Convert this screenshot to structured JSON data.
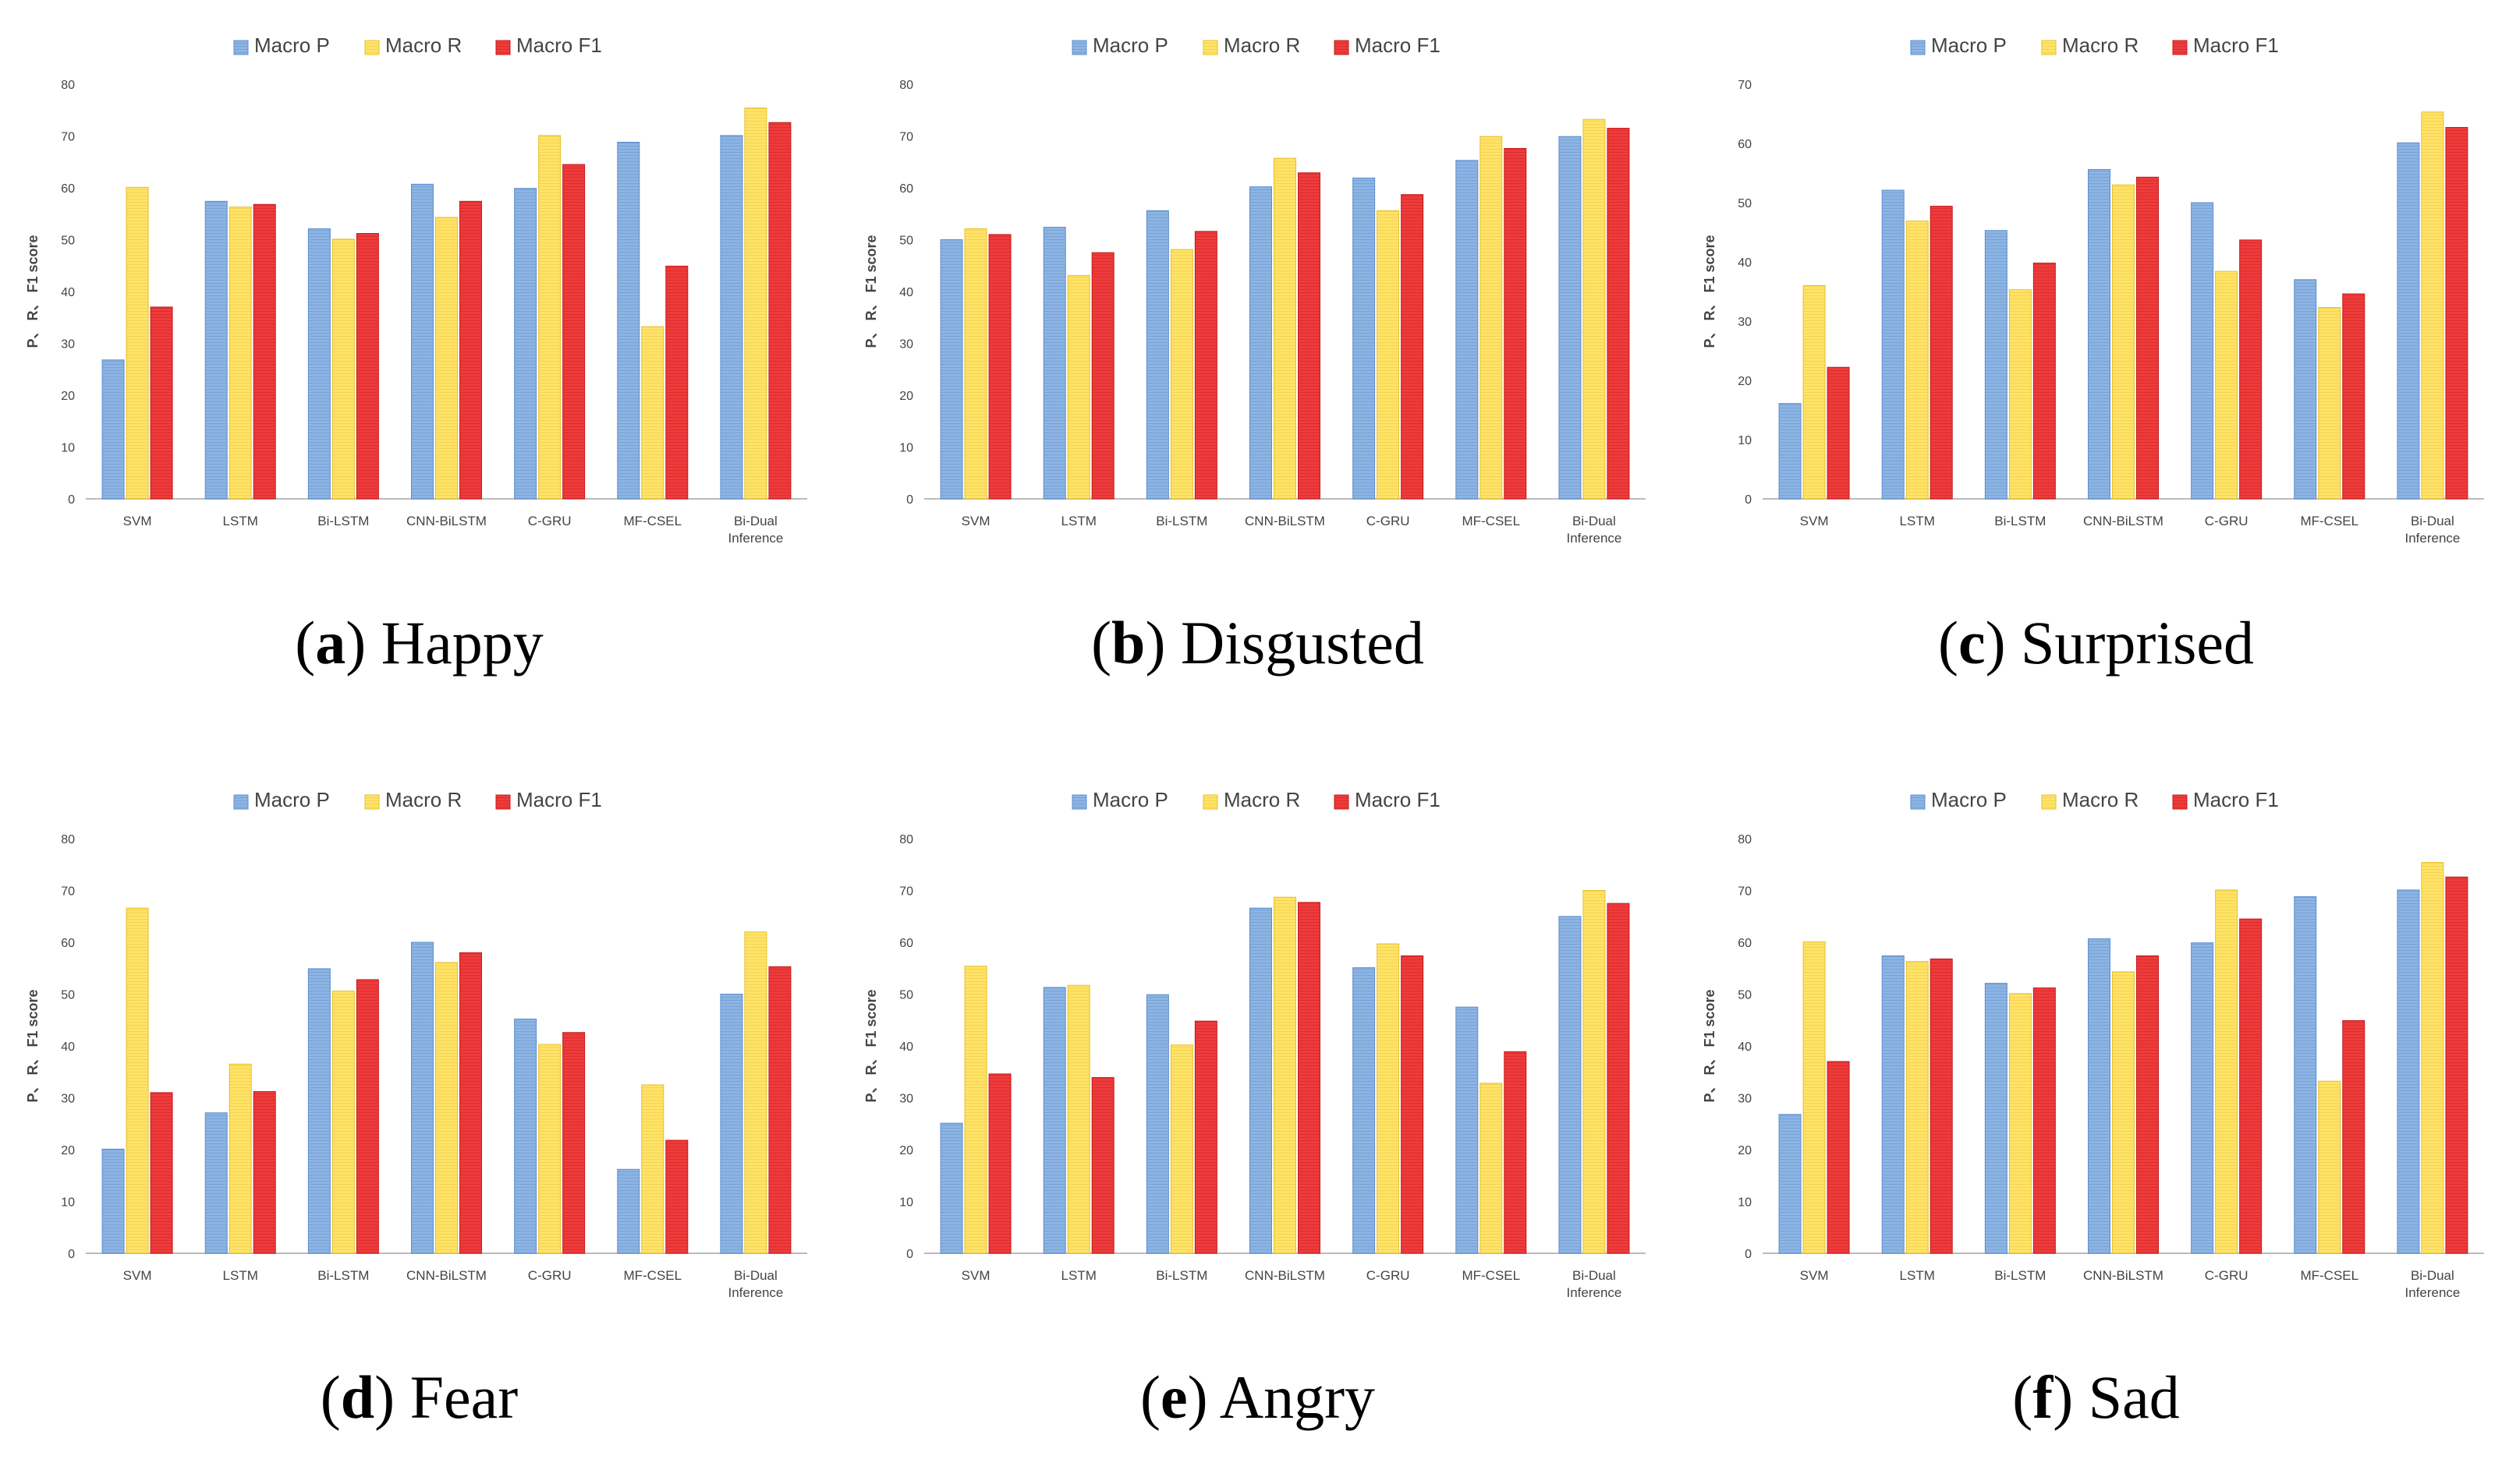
{
  "legend": {
    "labels": [
      "Macro P",
      "Macro R",
      "Macro F1"
    ]
  },
  "colors": {
    "p": "#8db4e2",
    "p_stroke": "#5b8ed0",
    "r": "#ffe36a",
    "r_stroke": "#e8bf2a",
    "f1": "#ee3b3b",
    "f1_stroke": "#c41c1c"
  },
  "chart_data": [
    {
      "type": "bar",
      "panel": "a",
      "caption_letter": "a",
      "caption_text": "Happy",
      "ylabel": "P、 R、 F1 score",
      "categories": [
        "SVM",
        "LSTM",
        "Bi-LSTM",
        "CNN-BiLSTM",
        "C-GRU",
        "MF-CSEL",
        "Bi-Dual Inference"
      ],
      "ylim": [
        0,
        80
      ],
      "yticks": [
        0,
        10,
        20,
        30,
        40,
        50,
        60,
        70,
        80
      ],
      "series": [
        {
          "name": "Macro P",
          "values": [
            26.8,
            57.4,
            52.1,
            60.7,
            59.9,
            68.8,
            70.1
          ]
        },
        {
          "name": "Macro R",
          "values": [
            60.1,
            56.3,
            50.1,
            54.3,
            70.1,
            33.2,
            75.4
          ]
        },
        {
          "name": "Macro F1",
          "values": [
            37.0,
            56.8,
            51.2,
            57.4,
            64.5,
            44.9,
            72.6
          ]
        }
      ]
    },
    {
      "type": "bar",
      "panel": "b",
      "caption_letter": "b",
      "caption_text": "Disgusted",
      "ylabel": "P、 R、 F1 score",
      "categories": [
        "SVM",
        "LSTM",
        "Bi-LSTM",
        "CNN-BiLSTM",
        "C-GRU",
        "MF-CSEL",
        "Bi-Dual Inference"
      ],
      "ylim": [
        0,
        80
      ],
      "yticks": [
        0,
        10,
        20,
        30,
        40,
        50,
        60,
        70,
        80
      ],
      "series": [
        {
          "name": "Macro P",
          "values": [
            50.0,
            52.4,
            55.6,
            60.2,
            61.9,
            65.3,
            69.9
          ]
        },
        {
          "name": "Macro R",
          "values": [
            52.1,
            43.1,
            48.1,
            65.7,
            55.6,
            69.9,
            73.2
          ]
        },
        {
          "name": "Macro F1",
          "values": [
            51.0,
            47.5,
            51.6,
            62.9,
            58.7,
            67.6,
            71.5
          ]
        }
      ]
    },
    {
      "type": "bar",
      "panel": "c",
      "caption_letter": "c",
      "caption_text": "Surprised",
      "ylabel": "P、 R、 F1 score",
      "categories": [
        "SVM",
        "LSTM",
        "Bi-LSTM",
        "CNN-BiLSTM",
        "C-GRU",
        "MF-CSEL",
        "Bi-Dual Inference"
      ],
      "ylim": [
        0,
        70
      ],
      "yticks": [
        0,
        10,
        20,
        30,
        40,
        50,
        60,
        70
      ],
      "series": [
        {
          "name": "Macro P",
          "values": [
            16.1,
            52.1,
            45.3,
            55.6,
            50.0,
            37.0,
            60.1
          ]
        },
        {
          "name": "Macro R",
          "values": [
            36.0,
            46.9,
            35.3,
            53.0,
            38.4,
            32.3,
            65.3
          ]
        },
        {
          "name": "Macro F1",
          "values": [
            22.2,
            49.4,
            39.8,
            54.3,
            43.7,
            34.6,
            62.7
          ]
        }
      ]
    },
    {
      "type": "bar",
      "panel": "d",
      "caption_letter": "d",
      "caption_text": "Fear",
      "ylabel": "P、 R、 F1 score",
      "categories": [
        "SVM",
        "LSTM",
        "Bi-LSTM",
        "CNN-BiLSTM",
        "C-GRU",
        "MF-CSEL",
        "Bi-Dual Inference"
      ],
      "ylim": [
        0,
        80
      ],
      "yticks": [
        0,
        10,
        20,
        30,
        40,
        50,
        60,
        70,
        80
      ],
      "series": [
        {
          "name": "Macro P",
          "values": [
            20.1,
            27.1,
            54.9,
            60.0,
            45.2,
            16.2,
            50.0
          ]
        },
        {
          "name": "Macro R",
          "values": [
            66.6,
            36.5,
            50.6,
            56.1,
            40.3,
            32.5,
            62.0
          ]
        },
        {
          "name": "Macro F1",
          "values": [
            31.0,
            31.2,
            52.8,
            58.0,
            42.6,
            21.8,
            55.3
          ]
        }
      ]
    },
    {
      "type": "bar",
      "panel": "e",
      "caption_letter": "e",
      "caption_text": "Angry",
      "ylabel": "P、 R、 F1 score",
      "categories": [
        "SVM",
        "LSTM",
        "Bi-LSTM",
        "CNN-BiLSTM",
        "C-GRU",
        "MF-CSEL",
        "Bi-Dual Inference"
      ],
      "ylim": [
        0,
        80
      ],
      "yticks": [
        0,
        10,
        20,
        30,
        40,
        50,
        60,
        70,
        80
      ],
      "series": [
        {
          "name": "Macro P",
          "values": [
            25.1,
            51.3,
            49.9,
            66.6,
            55.1,
            47.5,
            65.0
          ]
        },
        {
          "name": "Macro R",
          "values": [
            55.4,
            51.7,
            40.2,
            68.7,
            59.7,
            32.8,
            70.0
          ]
        },
        {
          "name": "Macro F1",
          "values": [
            34.6,
            33.9,
            44.8,
            67.7,
            57.4,
            38.9,
            67.5
          ]
        }
      ]
    },
    {
      "type": "bar",
      "panel": "f",
      "caption_letter": "f",
      "caption_text": "Sad",
      "ylabel": "P、 R、 F1 score",
      "categories": [
        "SVM",
        "LSTM",
        "Bi-LSTM",
        "CNN-BiLSTM",
        "C-GRU",
        "MF-CSEL",
        "Bi-Dual Inference"
      ],
      "ylim": [
        0,
        80
      ],
      "yticks": [
        0,
        10,
        20,
        30,
        40,
        50,
        60,
        70,
        80
      ],
      "series": [
        {
          "name": "Macro P",
          "values": [
            26.8,
            57.4,
            52.1,
            60.7,
            59.9,
            68.8,
            70.1
          ]
        },
        {
          "name": "Macro R",
          "values": [
            60.1,
            56.3,
            50.1,
            54.3,
            70.1,
            33.2,
            75.4
          ]
        },
        {
          "name": "Macro F1",
          "values": [
            37.0,
            56.8,
            51.2,
            57.4,
            64.5,
            44.9,
            72.6
          ]
        }
      ]
    }
  ]
}
